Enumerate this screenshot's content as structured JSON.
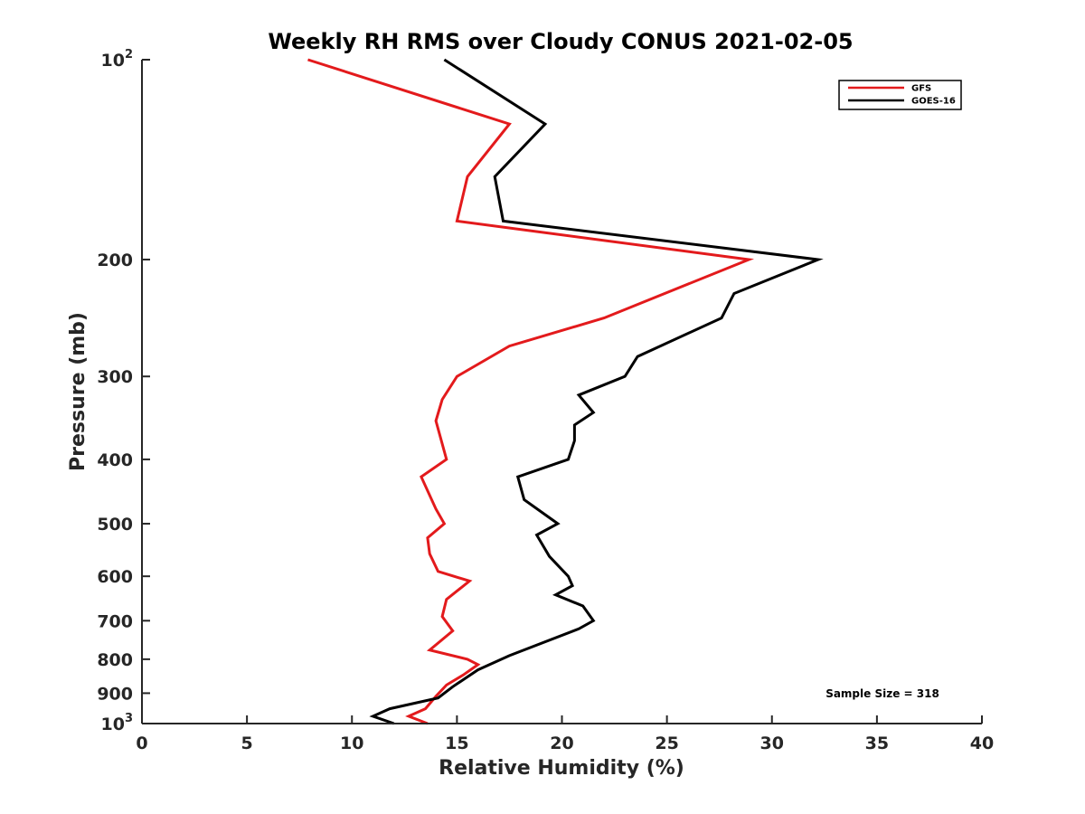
{
  "chart_data": {
    "type": "line",
    "title": "Weekly RH RMS over Cloudy CONUS 2021-02-05",
    "xlabel": "Relative Humidity (%)",
    "ylabel": "Pressure (mb)",
    "xlim": [
      0,
      40
    ],
    "ylim": [
      100,
      1000
    ],
    "y_scale": "log",
    "y_reversed": true,
    "xticks": [
      0,
      5,
      10,
      15,
      20,
      25,
      30,
      35,
      40
    ],
    "yticks": [
      {
        "value": 100,
        "label": "10",
        "sup": "2"
      },
      {
        "value": 200,
        "label": "200",
        "sup": ""
      },
      {
        "value": 300,
        "label": "300",
        "sup": ""
      },
      {
        "value": 400,
        "label": "400",
        "sup": ""
      },
      {
        "value": 500,
        "label": "500",
        "sup": ""
      },
      {
        "value": 600,
        "label": "600",
        "sup": ""
      },
      {
        "value": 700,
        "label": "700",
        "sup": ""
      },
      {
        "value": 800,
        "label": "800",
        "sup": ""
      },
      {
        "value": 900,
        "label": "900",
        "sup": ""
      },
      {
        "value": 1000,
        "label": "10",
        "sup": "3"
      }
    ],
    "grid": false,
    "legend_position": "top-right",
    "series": [
      {
        "name": "GFS",
        "color": "#e31a1c",
        "points": [
          [
            7.9,
            100
          ],
          [
            17.5,
            125
          ],
          [
            15.5,
            150
          ],
          [
            15.0,
            175
          ],
          [
            28.9,
            200
          ],
          [
            22.0,
            245
          ],
          [
            17.5,
            270
          ],
          [
            15.0,
            300
          ],
          [
            14.3,
            325
          ],
          [
            14.0,
            350
          ],
          [
            14.5,
            400
          ],
          [
            13.3,
            425
          ],
          [
            14.0,
            475
          ],
          [
            14.4,
            500
          ],
          [
            13.6,
            525
          ],
          [
            13.7,
            555
          ],
          [
            14.1,
            590
          ],
          [
            15.6,
            610
          ],
          [
            14.5,
            650
          ],
          [
            14.3,
            690
          ],
          [
            14.8,
            725
          ],
          [
            13.7,
            775
          ],
          [
            15.5,
            800
          ],
          [
            16.0,
            815
          ],
          [
            15.3,
            845
          ],
          [
            14.5,
            875
          ],
          [
            14.0,
            910
          ],
          [
            13.5,
            950
          ],
          [
            12.7,
            975
          ],
          [
            13.6,
            1000
          ]
        ]
      },
      {
        "name": "GOES-16",
        "color": "#000000",
        "points": [
          [
            14.4,
            100
          ],
          [
            19.2,
            125
          ],
          [
            16.8,
            150
          ],
          [
            17.2,
            175
          ],
          [
            32.2,
            200
          ],
          [
            28.2,
            225
          ],
          [
            27.6,
            245
          ],
          [
            23.6,
            280
          ],
          [
            23.0,
            300
          ],
          [
            20.8,
            320
          ],
          [
            21.5,
            340
          ],
          [
            20.6,
            355
          ],
          [
            20.6,
            375
          ],
          [
            20.3,
            400
          ],
          [
            17.9,
            425
          ],
          [
            18.2,
            460
          ],
          [
            19.8,
            500
          ],
          [
            18.8,
            520
          ],
          [
            19.4,
            560
          ],
          [
            20.3,
            600
          ],
          [
            20.5,
            620
          ],
          [
            19.7,
            640
          ],
          [
            21.0,
            665
          ],
          [
            21.5,
            700
          ],
          [
            20.8,
            720
          ],
          [
            17.5,
            790
          ],
          [
            16.0,
            830
          ],
          [
            14.8,
            880
          ],
          [
            14.1,
            915
          ],
          [
            11.8,
            950
          ],
          [
            11.0,
            975
          ],
          [
            12.0,
            1000
          ]
        ]
      }
    ],
    "annotations": [
      "Sample Size = 318"
    ]
  }
}
